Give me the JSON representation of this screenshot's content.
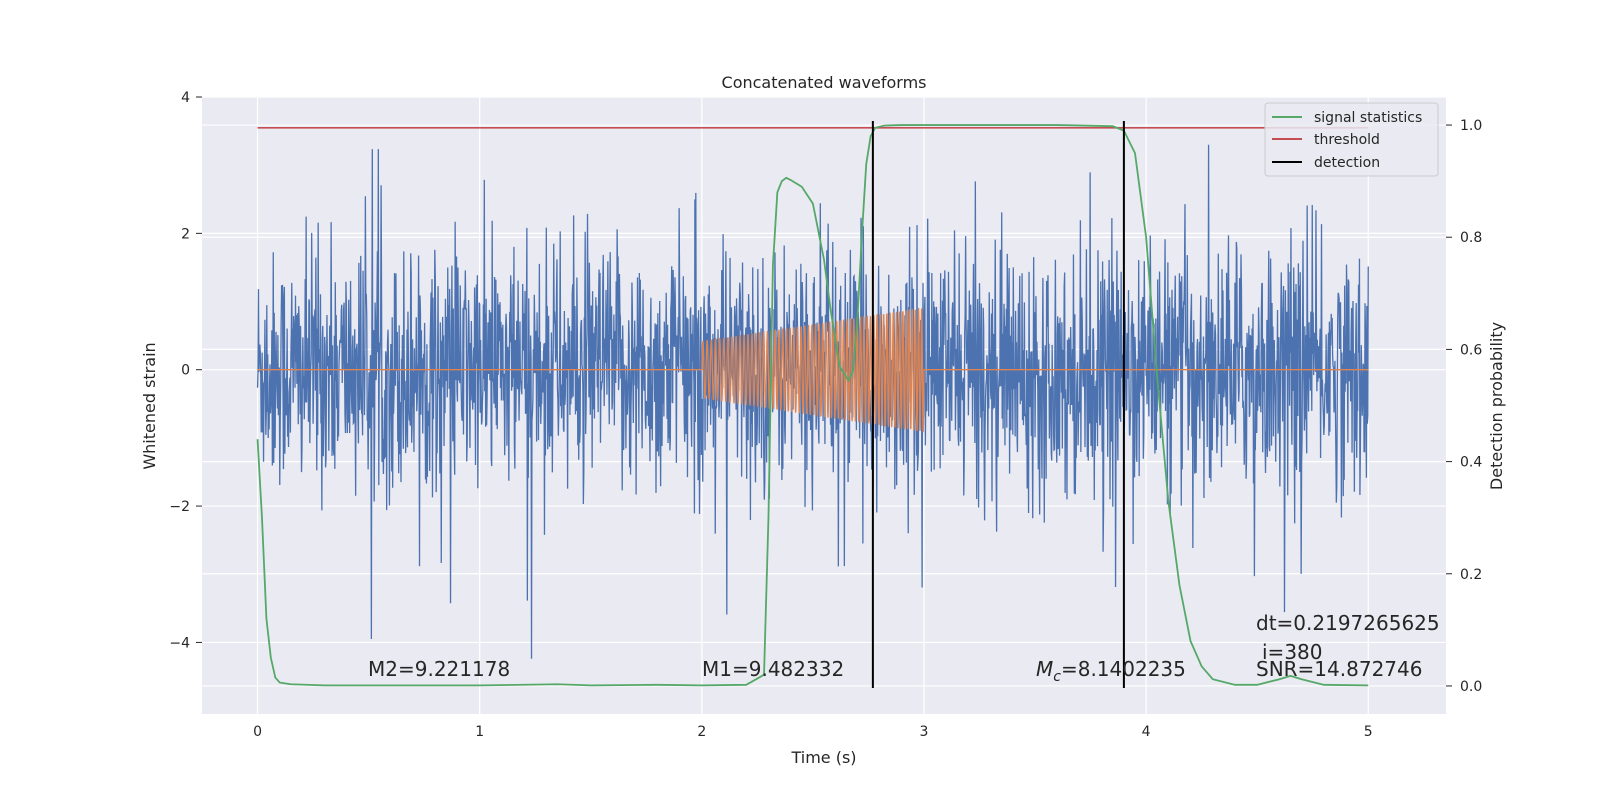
{
  "chart_data": {
    "type": "line",
    "title": "Concatenated waveforms",
    "xlabel": "Time (s)",
    "ylabel": "Whitened strain",
    "ylabel_right": "Detection probability",
    "xlim": [
      -0.25,
      5.35
    ],
    "ylim": [
      -5.05,
      4.0
    ],
    "ylim_right": [
      -0.05,
      1.05
    ],
    "x_ticks": [
      0,
      1,
      2,
      3,
      4,
      5
    ],
    "y_ticks": [
      -4,
      -2,
      0,
      2,
      4
    ],
    "y_ticks_right": [
      0.0,
      0.2,
      0.4,
      0.6,
      0.8,
      1.0
    ],
    "grid": true,
    "legend_position": "top-right",
    "legend": [
      "signal statistics",
      "threshold",
      "detection"
    ],
    "colors": {
      "noise": "#4c72b0",
      "template": "#dd8452",
      "signal_statistics": "#55a868",
      "threshold": "#c44e52",
      "detection": "#000000",
      "background": "#eaeaf2",
      "grid": "#ffffff"
    },
    "threshold": 0.995,
    "detections": [
      2.77,
      3.9
    ],
    "signal_statistics": {
      "x": [
        0.0,
        0.02,
        0.04,
        0.06,
        0.08,
        0.1,
        0.15,
        0.3,
        0.6,
        1.0,
        1.35,
        1.5,
        1.8,
        2.0,
        2.2,
        2.28,
        2.3,
        2.32,
        2.34,
        2.36,
        2.38,
        2.4,
        2.45,
        2.5,
        2.55,
        2.58,
        2.62,
        2.66,
        2.68,
        2.7,
        2.72,
        2.74,
        2.76,
        2.78,
        2.82,
        2.9,
        3.2,
        3.6,
        3.85,
        3.9,
        3.95,
        4.0,
        4.05,
        4.1,
        4.15,
        4.2,
        4.25,
        4.3,
        4.4,
        4.5,
        4.6,
        4.65,
        4.7,
        4.8,
        5.0
      ],
      "y": [
        0.44,
        0.3,
        0.12,
        0.05,
        0.015,
        0.006,
        0.003,
        0.001,
        0.001,
        0.001,
        0.003,
        0.001,
        0.002,
        0.001,
        0.002,
        0.02,
        0.3,
        0.75,
        0.88,
        0.9,
        0.906,
        0.902,
        0.89,
        0.86,
        0.76,
        0.67,
        0.57,
        0.545,
        0.56,
        0.65,
        0.8,
        0.93,
        0.98,
        0.995,
        0.999,
        1.0,
        1.0,
        1.0,
        0.998,
        0.99,
        0.95,
        0.8,
        0.55,
        0.33,
        0.18,
        0.08,
        0.035,
        0.012,
        0.002,
        0.002,
        0.012,
        0.018,
        0.012,
        0.002,
        0.001
      ]
    },
    "template_waveform": {
      "flat_before": [
        0,
        2
      ],
      "chirp": [
        2,
        3
      ],
      "flat_after": [
        3,
        5
      ]
    },
    "annotations": {
      "m2": "M2=9.221178",
      "m1": "M1=9.482332",
      "mc_sym": "M",
      "mc_sub": "c",
      "mc_val": "=8.1402235",
      "dt": "dt=0.2197265625",
      "i": "i=380",
      "snr": "SNR=14.872746"
    }
  }
}
